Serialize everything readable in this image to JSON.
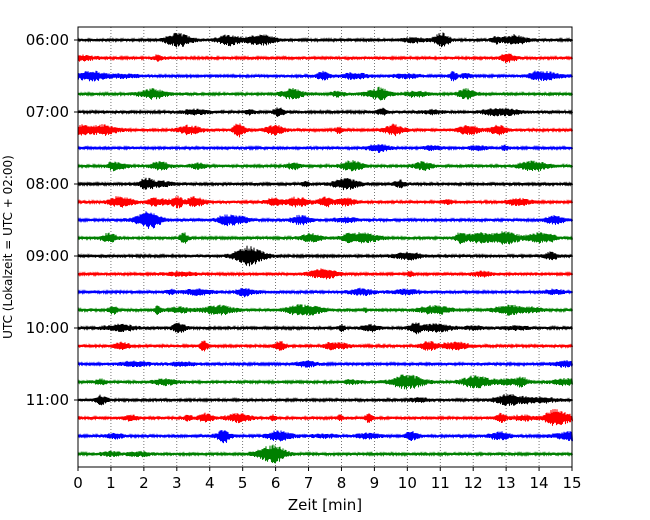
{
  "chart_data": {
    "type": "line",
    "title": "",
    "xlabel": "Zeit  [min]",
    "ylabel": "UTC (Lokalzeit = UTC + 02:00)",
    "xlim": [
      0,
      15
    ],
    "x_ticks": [
      0,
      1,
      2,
      3,
      4,
      5,
      6,
      7,
      8,
      9,
      10,
      11,
      12,
      13,
      14,
      15
    ],
    "y_tick_labels": [
      "06:00",
      "07:00",
      "08:00",
      "09:00",
      "10:00",
      "11:00"
    ],
    "grid": "vertical dotted",
    "color_cycle": [
      "#000000",
      "#ff0000",
      "#0000ff",
      "#008000"
    ],
    "trace_start_times": [
      "06:00",
      "06:15",
      "06:30",
      "06:45",
      "07:00",
      "07:15",
      "07:30",
      "07:45",
      "08:00",
      "08:15",
      "08:30",
      "08:45",
      "09:00",
      "09:15",
      "09:30",
      "09:45",
      "10:00",
      "10:15",
      "10:30",
      "10:45",
      "11:00",
      "11:15",
      "11:30",
      "11:45"
    ]
  }
}
